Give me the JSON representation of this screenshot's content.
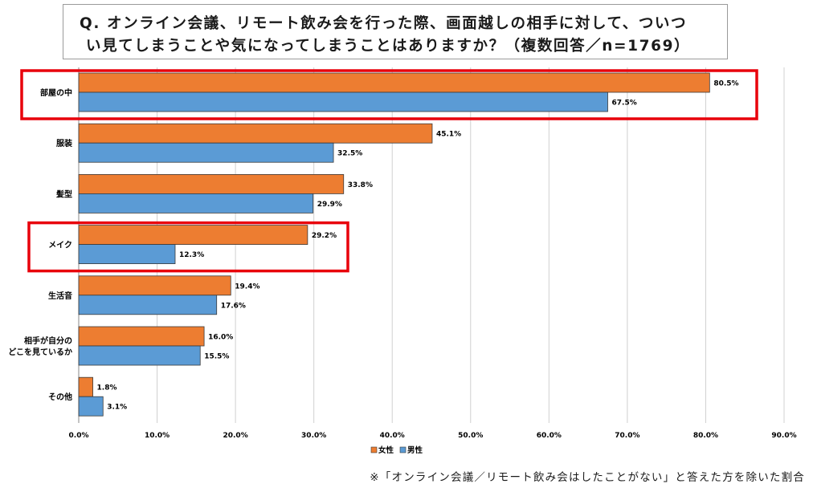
{
  "question": {
    "line1": "Q. オンライン会議、リモート飲み会を行った際、画面越しの相手に対して、ついつ",
    "line2": "い見てしまうことや気になってしまうことはありますか？（複数回答／n=1769）"
  },
  "footnote": "※「オンライン会議／リモート飲み会はしたことがない」と答えた方を除いた割合",
  "colors": {
    "female": "#ed7d31",
    "male": "#5b9bd5",
    "highlight": "#e8000b",
    "grid": "#d0d0d0",
    "axis": "#888888"
  },
  "chart_data": {
    "type": "bar",
    "orientation": "horizontal",
    "categories": [
      "部屋の中",
      "服装",
      "髪型",
      "メイク",
      "生活音",
      "相手が自分の\nどこを見ているか",
      "その他"
    ],
    "series": [
      {
        "name": "女性",
        "values": [
          80.5,
          45.1,
          33.8,
          29.2,
          19.4,
          16.0,
          1.8
        ]
      },
      {
        "name": "男性",
        "values": [
          67.5,
          32.5,
          29.9,
          12.3,
          17.6,
          15.5,
          3.1
        ]
      }
    ],
    "value_labels": [
      [
        "80.5%",
        "45.1%",
        "33.8%",
        "29.2%",
        "19.4%",
        "16.0%",
        "1.8%"
      ],
      [
        "67.5%",
        "32.5%",
        "29.9%",
        "12.3%",
        "17.6%",
        "15.5%",
        "3.1%"
      ]
    ],
    "xlim": [
      0,
      90
    ],
    "xticks": [
      0,
      10,
      20,
      30,
      40,
      50,
      60,
      70,
      80,
      90
    ],
    "xtick_labels": [
      "0.0%",
      "10.0%",
      "20.0%",
      "30.0%",
      "40.0%",
      "50.0%",
      "60.0%",
      "70.0%",
      "80.0%",
      "90.0%"
    ],
    "grid": true,
    "legend": {
      "position": "bottom-center",
      "entries": [
        "女性",
        "男性"
      ]
    },
    "highlighted_categories": [
      "部屋の中",
      "メイク"
    ]
  }
}
